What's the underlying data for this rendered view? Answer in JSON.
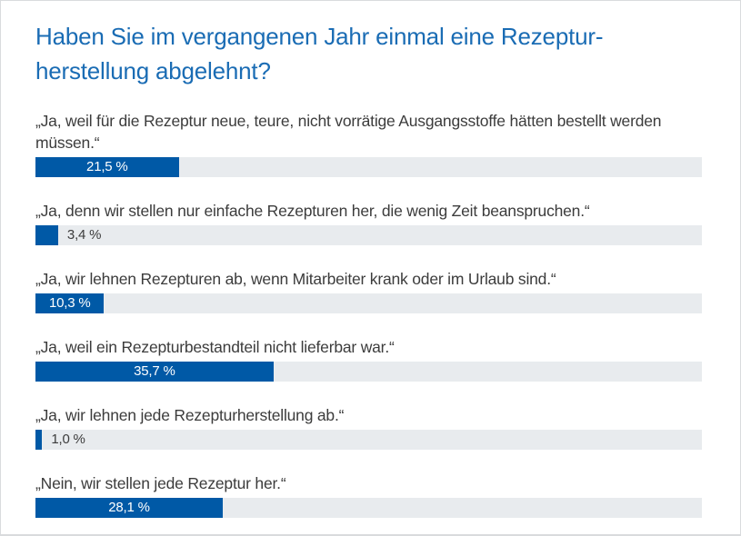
{
  "chart_data": {
    "type": "bar",
    "orientation": "horizontal",
    "title": "Haben Sie im vergangenen Jahr einmal eine Rezepturherstellung abgelehnt?",
    "title_lines": [
      "Haben Sie im vergangenen Jahr einmal eine Rezeptur-",
      "herstellung abgelehnt?"
    ],
    "categories": [
      "„Ja, weil für die Rezeptur neue, teure, nicht vorrätige Ausgangsstoffe hätten bestellt werden müssen.“",
      "„Ja, denn wir stellen nur einfache Rezepturen her, die wenig Zeit beanspruchen.“",
      "„Ja, wir lehnen Rezepturen ab, wenn Mitarbeiter krank oder im Urlaub sind.“",
      "„Ja, weil ein Rezepturbestandteil nicht lieferbar war.“",
      "„Ja, wir lehnen jede Rezepturherstellung ab.“",
      "„Nein, wir stellen jede Rezeptur her.“"
    ],
    "values": [
      21.5,
      3.4,
      10.3,
      35.7,
      1.0,
      28.1
    ],
    "value_labels": [
      "21,5 %",
      "3,4 %",
      "10,3 %",
      "35,7 %",
      "1,0 %",
      "28,1 %"
    ],
    "xlim": [
      0,
      100
    ],
    "grid": false,
    "legend": "none",
    "colors": {
      "bar": "#0059a6",
      "bar_track": "#e8ebee",
      "title": "#1a6cb4",
      "text": "#3c3c3c",
      "label_inside": "#ffffff",
      "card_border": "#d9dbdd",
      "background": "#ffffff"
    }
  }
}
